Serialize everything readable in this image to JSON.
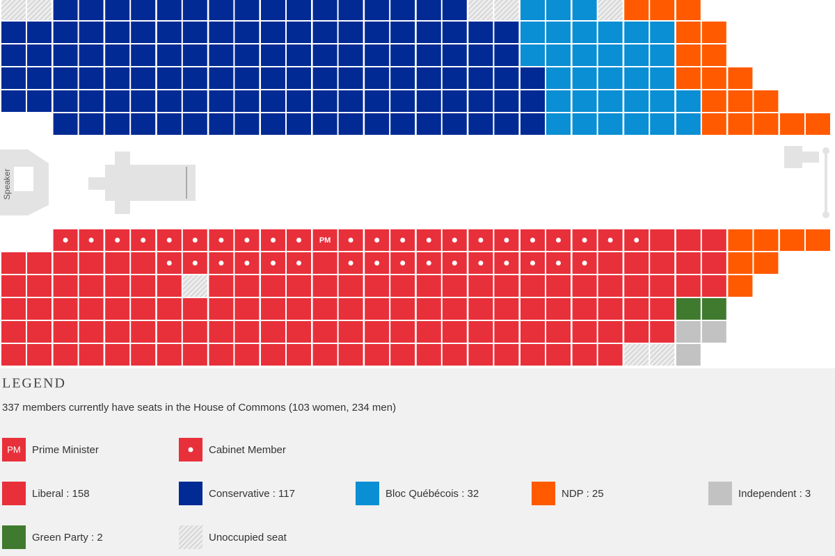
{
  "chamber": {
    "speaker_label": "Speaker",
    "pm_label": "PM"
  },
  "legend": {
    "title": "LEGEND",
    "description": "337 members currently have seats in the House of Commons (103 women, 234 men)",
    "items": [
      {
        "label": "Prime Minister",
        "color": "#e8303a",
        "mark": "PM"
      },
      {
        "label": "Cabinet Member",
        "color": "#e8303a",
        "mark": "dot"
      },
      {
        "label": "Liberal : 158",
        "color": "#e8303a"
      },
      {
        "label": "Conservative : 117",
        "color": "#012a94"
      },
      {
        "label": "Bloc Québécois : 32",
        "color": "#0a8fd4"
      },
      {
        "label": "NDP : 25",
        "color": "#ff5a00"
      },
      {
        "label": "Independent : 3",
        "color": "#c2c2c2"
      },
      {
        "label": "Green Party : 2",
        "color": "#3f7a2f"
      },
      {
        "label": "Unoccupied seat",
        "color": "hatch"
      }
    ]
  }
}
